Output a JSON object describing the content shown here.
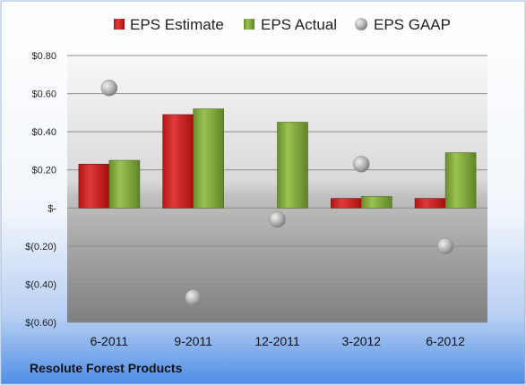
{
  "chart_data": {
    "type": "bar",
    "title": "",
    "xlabel": "",
    "ylabel": "",
    "categories": [
      "6-2011",
      "9-2011",
      "12-2011",
      "3-2012",
      "6-2012"
    ],
    "series": [
      {
        "name": "EPS Estimate",
        "kind": "bar",
        "color": "#cc1f1f",
        "values": [
          0.23,
          0.49,
          null,
          0.05,
          0.05
        ]
      },
      {
        "name": "EPS Actual",
        "kind": "bar",
        "color": "#7ea33a",
        "values": [
          0.25,
          0.52,
          0.45,
          0.06,
          0.29
        ]
      },
      {
        "name": "EPS GAAP",
        "kind": "scatter",
        "color": "#a9a9a9",
        "values": [
          0.63,
          -0.47,
          -0.06,
          0.23,
          -0.2
        ]
      }
    ],
    "ylim": [
      -0.6,
      0.8
    ],
    "yticks": [
      0.8,
      0.6,
      0.4,
      0.2,
      0,
      -0.2,
      -0.4,
      -0.6
    ],
    "ytick_labels": [
      "$0.80",
      "$0.60",
      "$0.40",
      "$0.20",
      "$-",
      "$(0.20)",
      "$(0.40)",
      "$(0.60)"
    ],
    "grid": true,
    "legend_position": "top"
  },
  "footer": {
    "company": "Resolute Forest Products"
  },
  "colors": {
    "background_top": "#ffffff",
    "background_bottom": "#4f8ee6"
  }
}
